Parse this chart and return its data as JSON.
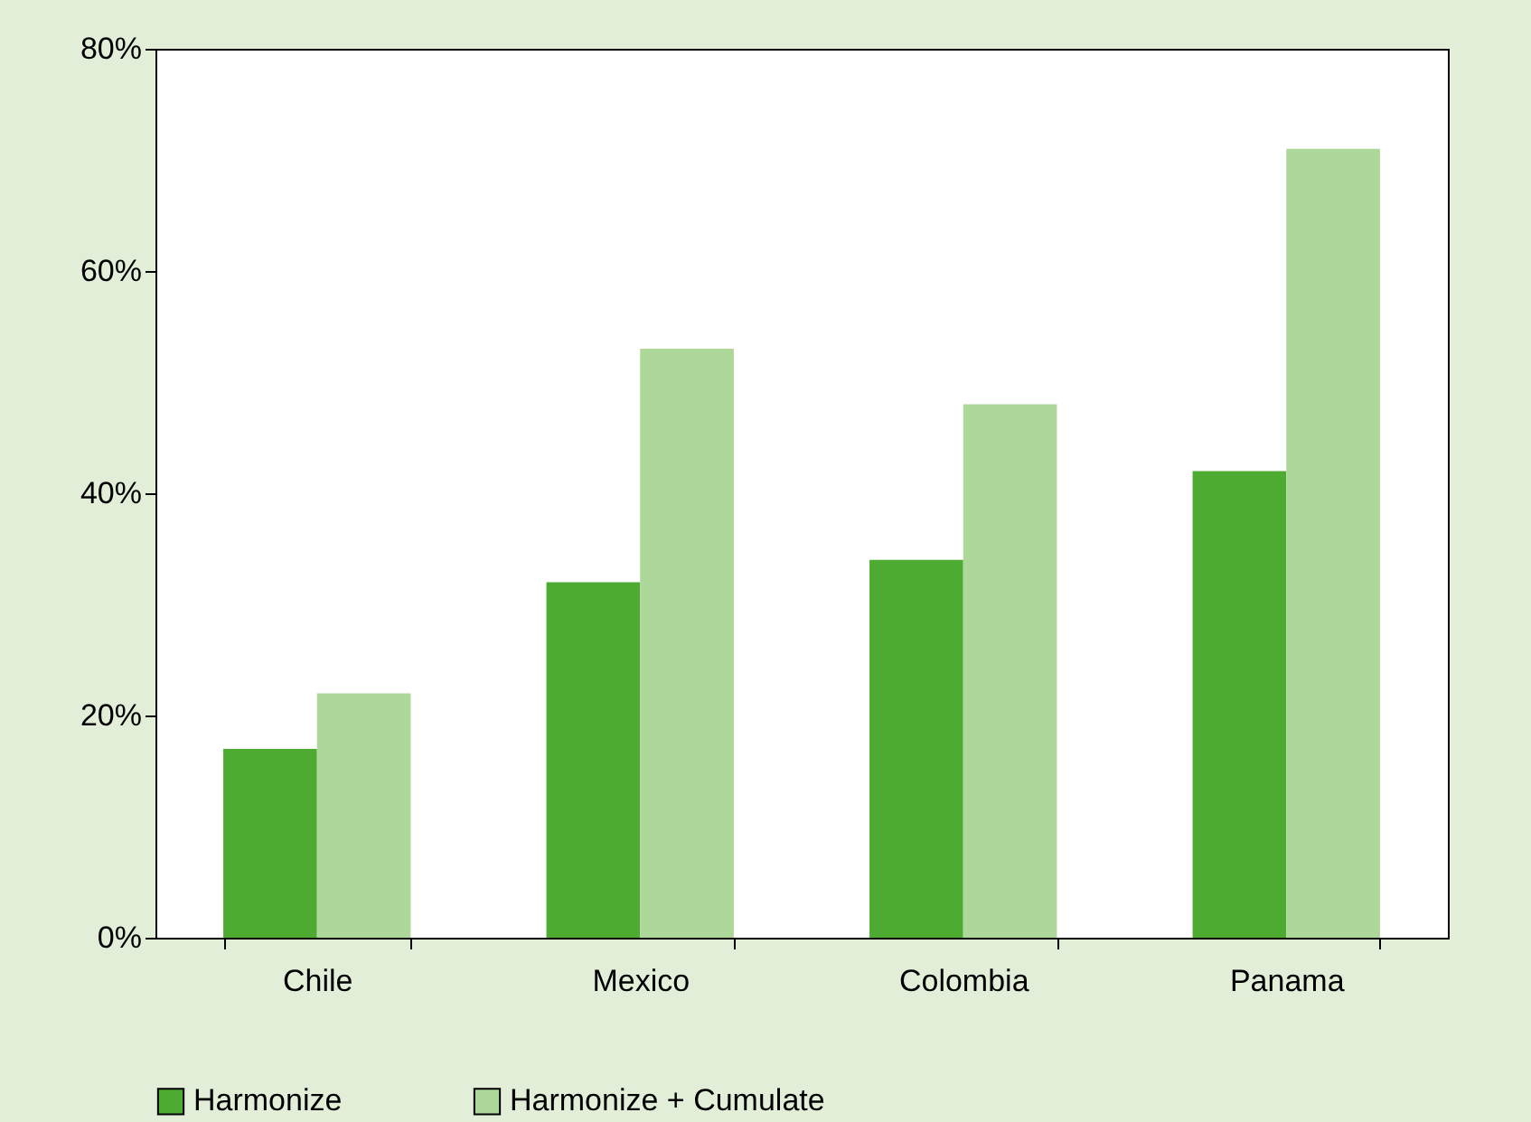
{
  "chart_data": {
    "type": "bar",
    "categories": [
      "Chile",
      "Mexico",
      "Colombia",
      "Panama"
    ],
    "series": [
      {
        "name": "Harmonize",
        "color": "#4dab32",
        "values": [
          17,
          32,
          34,
          42
        ]
      },
      {
        "name": "Harmonize + Cumulate",
        "color": "#add89a",
        "values": [
          22,
          53,
          48,
          71
        ]
      }
    ],
    "ylim": [
      0,
      80
    ],
    "yticks": [
      {
        "value": 0,
        "label": "0%"
      },
      {
        "value": 20,
        "label": "20%"
      },
      {
        "value": 40,
        "label": "40%"
      },
      {
        "value": 60,
        "label": "60%"
      },
      {
        "value": 80,
        "label": "80%"
      }
    ],
    "grid": false,
    "legend": "bottom"
  }
}
